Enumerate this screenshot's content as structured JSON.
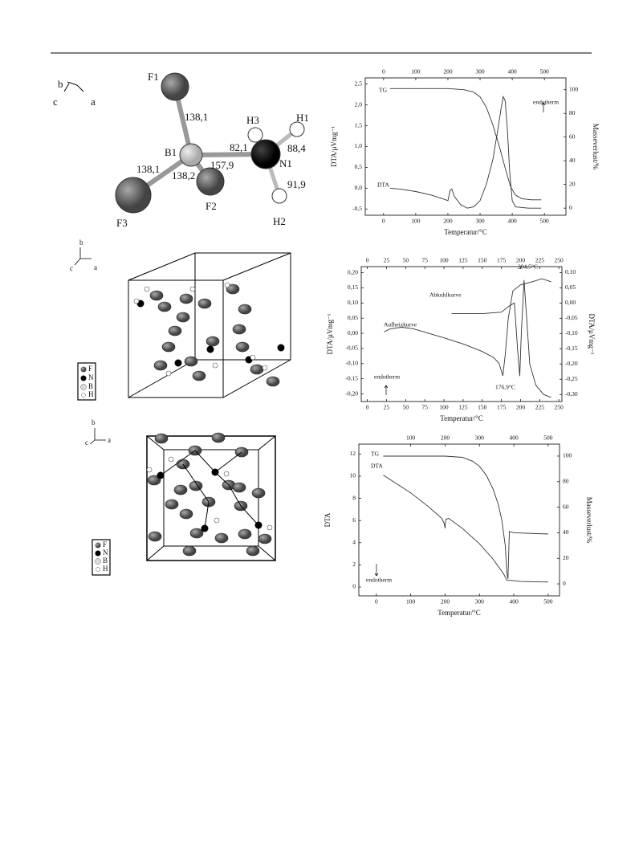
{
  "figure_1": {
    "axes": [
      "b",
      "c",
      "a"
    ],
    "atoms": [
      "F1",
      "H3",
      "H1",
      "B1",
      "N1",
      "F3",
      "F2",
      "H2"
    ],
    "bond_lengths": [
      "138,1",
      "82,1",
      "88,4",
      "138,1",
      "157,9",
      "138,2",
      "91,9"
    ]
  },
  "figure_2": {
    "axes": [
      "b",
      "c",
      "a"
    ],
    "legend": [
      "F",
      "N",
      "B",
      "H"
    ]
  },
  "figure_3": {
    "axes": [
      "b",
      "c",
      "a"
    ],
    "legend": [
      "F",
      "N",
      "B",
      "H"
    ]
  },
  "chart_data": [
    {
      "type": "line",
      "xlabel": "Temperatur/°C",
      "ylabel": "DTA/µVmg⁻¹",
      "y2label": "Masseverlust/%",
      "xlim": [
        -57,
        567
      ],
      "xticks": [
        0,
        100,
        200,
        300,
        400,
        500
      ],
      "x2ticks": [
        0,
        100,
        200,
        300,
        400,
        500
      ],
      "ylim": [
        -0.65,
        2.65
      ],
      "yticks": [
        {
          "value": -0.5,
          "label": "-0,5"
        },
        {
          "value": 0,
          "label": "0,0"
        },
        {
          "value": 0.5,
          "label": "0,5"
        },
        {
          "value": 1,
          "label": "1,0"
        },
        {
          "value": 1.5,
          "label": "1,5"
        },
        {
          "value": 2,
          "label": "2,0"
        },
        {
          "value": 2.5,
          "label": "2,5"
        }
      ],
      "y2lim": [
        -6,
        110
      ],
      "y2ticks": [
        0,
        20,
        40,
        60,
        80,
        100
      ],
      "annotations": [
        "endotherm"
      ],
      "series": [
        {
          "name": "TG",
          "color": "#333333",
          "axis": "y2",
          "x": [
            20,
            100,
            200,
            250,
            280,
            300,
            320,
            340,
            360,
            380,
            395,
            410,
            430,
            460,
            490
          ],
          "values": [
            101,
            101,
            101,
            100,
            98,
            94,
            85,
            70,
            52,
            32,
            18,
            11,
            8,
            7,
            7
          ]
        },
        {
          "name": "DTA",
          "color": "#333333",
          "axis": "y",
          "x": [
            20,
            50,
            100,
            150,
            190,
            200,
            207,
            212,
            220,
            240,
            260,
            280,
            300,
            320,
            340,
            355,
            365,
            372,
            378,
            385,
            392,
            400,
            410,
            450,
            490
          ],
          "values": [
            0.0,
            -0.02,
            -0.08,
            -0.17,
            -0.27,
            -0.3,
            -0.05,
            -0.02,
            -0.2,
            -0.4,
            -0.48,
            -0.45,
            -0.3,
            0.1,
            0.7,
            1.4,
            1.9,
            2.2,
            2.1,
            1.4,
            0.4,
            -0.3,
            -0.45,
            -0.48,
            -0.48
          ]
        }
      ]
    },
    {
      "type": "line",
      "xlabel": "Temperatur/°C",
      "ylabel": "DTA/µVmg⁻¹",
      "y2label": "DTA/µVmg⁻¹",
      "xlim": [
        -8,
        254
      ],
      "xticks": [
        0,
        25,
        50,
        75,
        100,
        125,
        150,
        175,
        200,
        225,
        250
      ],
      "x2ticks": [
        0,
        25,
        50,
        75,
        100,
        125,
        150,
        175,
        200,
        225,
        250
      ],
      "ylim": [
        -0.225,
        0.22
      ],
      "yticks": [
        {
          "value": -0.2,
          "label": "-0,20"
        },
        {
          "value": -0.15,
          "label": "-0,15"
        },
        {
          "value": -0.1,
          "label": "-0,10"
        },
        {
          "value": -0.05,
          "label": "-0,05"
        },
        {
          "value": 0,
          "label": "0,00"
        },
        {
          "value": 0.05,
          "label": "0,05"
        },
        {
          "value": 0.1,
          "label": "0,10"
        },
        {
          "value": 0.15,
          "label": "0,15"
        },
        {
          "value": 0.2,
          "label": "0,20"
        }
      ],
      "y2lim": [
        -0.3233,
        0.1193
      ],
      "y2ticks": [
        {
          "value": -0.3,
          "label": "-0,30"
        },
        {
          "value": -0.25,
          "label": "-0,25"
        },
        {
          "value": -0.2,
          "label": "-0,20"
        },
        {
          "value": -0.15,
          "label": "-0,15"
        },
        {
          "value": -0.1,
          "label": "-0,10"
        },
        {
          "value": -0.05,
          "label": "-0,05"
        },
        {
          "value": 0,
          "label": "0,00"
        },
        {
          "value": 0.05,
          "label": "0,05"
        },
        {
          "value": 0.1,
          "label": "0,10"
        }
      ],
      "annotations": [
        "endotherm",
        "204,5°C",
        "176,9°C"
      ],
      "series": [
        {
          "name": "Abkuhlkurve",
          "color": "#333333",
          "axis": "y2",
          "x": [
            110,
            150,
            175,
            185,
            192,
            196,
            199,
            201,
            204.5,
            208,
            212,
            220,
            230,
            240
          ],
          "values": [
            -0.035,
            -0.035,
            -0.03,
            -0.01,
            0.0,
            -0.15,
            -0.24,
            -0.1,
            0.075,
            -0.05,
            -0.2,
            -0.27,
            -0.3,
            -0.31
          ]
        },
        {
          "name": "Aufheizkurve",
          "color": "#333333",
          "axis": "y",
          "x": [
            22,
            30,
            45,
            60,
            80,
            100,
            125,
            150,
            165,
            172,
            176.9,
            180,
            184,
            190,
            200,
            215,
            228,
            240
          ],
          "values": [
            0.005,
            0.015,
            0.02,
            0.015,
            0.0,
            -0.015,
            -0.035,
            -0.06,
            -0.08,
            -0.1,
            -0.14,
            -0.07,
            0.05,
            0.14,
            0.16,
            0.17,
            0.18,
            0.17
          ]
        }
      ]
    },
    {
      "type": "line",
      "xlabel": "Temperatur/°C",
      "ylabel": "DTA",
      "y2label": "Masseverlust/%",
      "xlim": [
        -51,
        533
      ],
      "xticks": [
        0,
        100,
        200,
        300,
        400,
        500
      ],
      "x2ticks": [
        100,
        200,
        300,
        400,
        500
      ],
      "ylim": [
        -0.8,
        12.9
      ],
      "yticks": [
        0,
        2,
        4,
        6,
        8,
        10,
        12
      ],
      "y2lim": [
        -9.4,
        109.4
      ],
      "y2ticks": [
        0,
        20,
        40,
        60,
        80,
        100
      ],
      "annotations": [
        "endotherm"
      ],
      "series": [
        {
          "name": "TG",
          "color": "#333333",
          "axis": "y2",
          "x": [
            20,
            100,
            200,
            250,
            280,
            300,
            320,
            340,
            355,
            365,
            375,
            380,
            383,
            387,
            400,
            500
          ],
          "values": [
            100,
            100,
            100,
            99,
            96,
            92,
            85,
            74,
            62,
            50,
            30,
            8,
            4,
            41,
            40,
            39
          ]
        },
        {
          "name": "DTA",
          "color": "#333333",
          "axis": "y",
          "x": [
            20,
            50,
            100,
            150,
            190,
            198,
            200,
            202,
            210,
            250,
            300,
            340,
            370,
            380,
            390,
            420,
            500
          ],
          "values": [
            10.1,
            9.5,
            8.5,
            7.3,
            6.2,
            5.7,
            5.3,
            6.1,
            6.2,
            5.3,
            3.9,
            2.5,
            1.2,
            0.6,
            0.6,
            0.5,
            0.45
          ]
        }
      ]
    }
  ]
}
